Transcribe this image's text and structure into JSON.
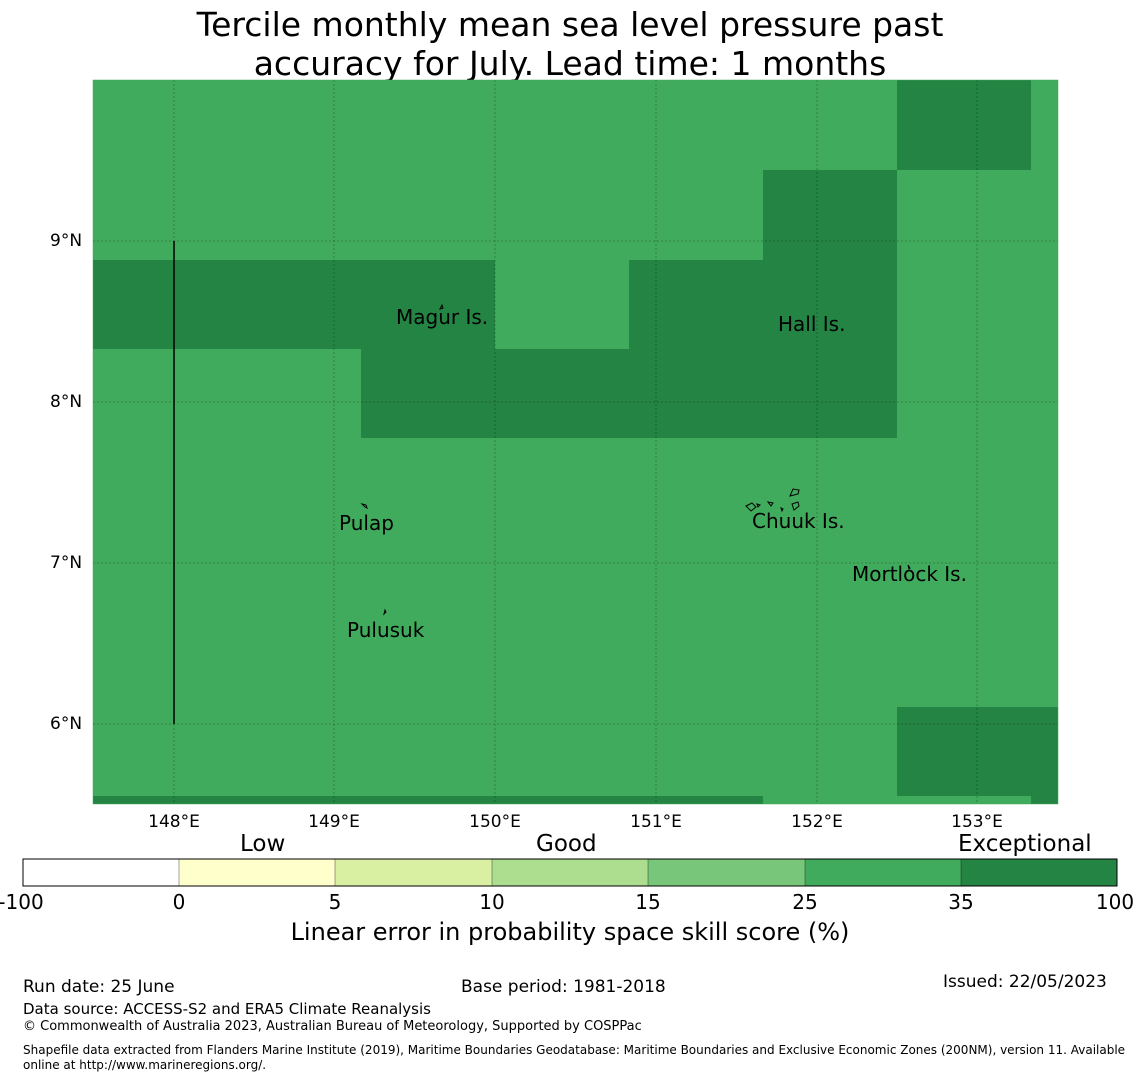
{
  "title_line1": "Tercile monthly mean sea level pressure past",
  "title_line2": "accuracy for July. Lead time: 1 months",
  "map": {
    "lon_range": [
      147.5,
      153.5
    ],
    "lat_range": [
      5.5,
      10.0
    ],
    "lat_ticks": [
      "9°N",
      "8°N",
      "7°N",
      "6°N"
    ],
    "lon_ticks": [
      "148°E",
      "149°E",
      "150°E",
      "151°E",
      "152°E",
      "153°E"
    ],
    "colors": {
      "good_high": "#41ab5d",
      "exceptional": "#238443"
    },
    "places": [
      {
        "name": "Magur Is."
      },
      {
        "name": "Hall Is."
      },
      {
        "name": "Pulap"
      },
      {
        "name": "Chuuk Is."
      },
      {
        "name": "Mortlock Is."
      },
      {
        "name": "Pulusuk"
      }
    ]
  },
  "colorbar": {
    "categories": [
      "Low",
      "Good",
      "Exceptional"
    ],
    "ticks": [
      "-100",
      "0",
      "5",
      "10",
      "15",
      "25",
      "35",
      "100"
    ],
    "colors": [
      "#ffffff",
      "#ffffcc",
      "#d9f0a3",
      "#addd8e",
      "#78c679",
      "#41ab5d",
      "#238443"
    ],
    "label": "Linear error in probability space skill score (%)"
  },
  "footer": {
    "run_date": "Run date: 25 June",
    "base_period": "Base period: 1981-2018",
    "issued": "Issued: 22/05/2023",
    "data_source": "Data source: ACCESS-S2 and ERA5 Climate Reanalysis",
    "copyright": "© Commonwealth of Australia 2023, Australian Bureau of Meteorology, Supported by COSPPac",
    "shapefile_line1": "Shapefile data extracted from Flanders Marine Institute (2019), Maritime Boundaries Geodatabase: Maritime Boundaries and Exclusive Economic Zones (200NM), version 11. Available",
    "shapefile_line2": "online at http://www.marineregions.org/."
  }
}
